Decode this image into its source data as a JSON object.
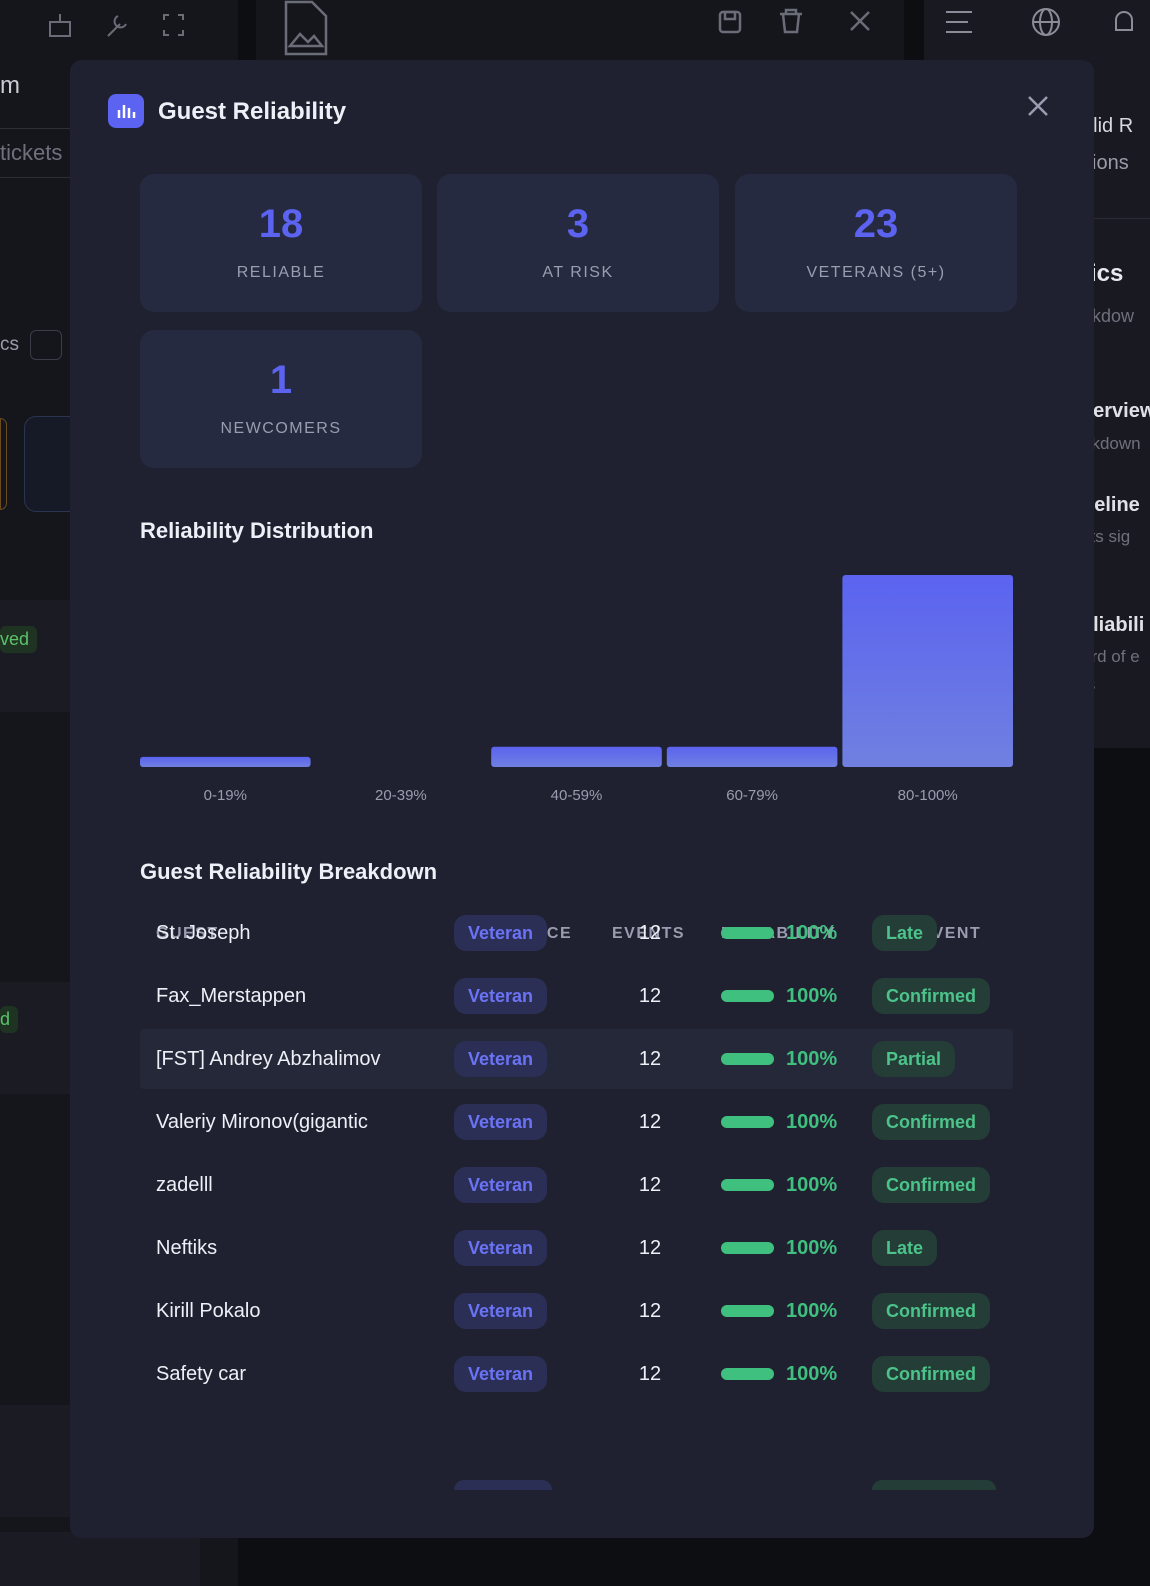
{
  "background": {
    "left_fragments": [
      "m",
      "tickets",
      "cs",
      "ved",
      "d"
    ],
    "right_fragments": [
      "alid R",
      "sions",
      "tics",
      "akdow",
      "verview",
      "akdown",
      "neline",
      "sts sig",
      "eliabili",
      "ord of e",
      "ts"
    ]
  },
  "modal": {
    "title": "Guest Reliability",
    "stats": [
      {
        "value": 18,
        "label": "RELIABLE"
      },
      {
        "value": 3,
        "label": "AT RISK"
      },
      {
        "value": 23,
        "label": "VETERANS (5+)"
      },
      {
        "value": 1,
        "label": "NEWCOMERS"
      }
    ]
  },
  "chart_data": {
    "type": "bar",
    "title": "Reliability Distribution",
    "categories": [
      "0-19%",
      "20-39%",
      "40-59%",
      "60-79%",
      "80-100%"
    ],
    "values": [
      1,
      0,
      2,
      2,
      19
    ],
    "color": "#5b63f0"
  },
  "table": {
    "title": "Guest Reliability Breakdown",
    "headers": [
      "GUEST",
      "EXPERIENCE",
      "EVENTS",
      "RELIABILITY",
      "THIS EVENT"
    ],
    "rows": [
      {
        "guest": "St. Joseph",
        "experience": "Veteran",
        "events": 12,
        "reliability": {
          "value": 100,
          "label": "100%"
        },
        "status": "Late"
      },
      {
        "guest": "Fax_Merstappen",
        "experience": "Veteran",
        "events": 12,
        "reliability": {
          "value": 100,
          "label": "100%"
        },
        "status": "Confirmed"
      },
      {
        "guest": "[FST] Andrey Abzhalimov",
        "experience": "Veteran",
        "events": 12,
        "reliability": {
          "value": 100,
          "label": "100%"
        },
        "status": "Partial"
      },
      {
        "guest": "Valeriy Mironov(gigantic",
        "experience": "Veteran",
        "events": 12,
        "reliability": {
          "value": 100,
          "label": "100%"
        },
        "status": "Confirmed"
      },
      {
        "guest": "zadelll",
        "experience": "Veteran",
        "events": 12,
        "reliability": {
          "value": 100,
          "label": "100%"
        },
        "status": "Confirmed"
      },
      {
        "guest": "Neftiks",
        "experience": "Veteran",
        "events": 12,
        "reliability": {
          "value": 100,
          "label": "100%"
        },
        "status": "Late"
      },
      {
        "guest": "Kirill Pokalo",
        "experience": "Veteran",
        "events": 12,
        "reliability": {
          "value": 100,
          "label": "100%"
        },
        "status": "Confirmed"
      },
      {
        "guest": "Safety car",
        "experience": "Veteran",
        "events": 12,
        "reliability": {
          "value": 100,
          "label": "100%"
        },
        "status": "Confirmed"
      }
    ]
  }
}
